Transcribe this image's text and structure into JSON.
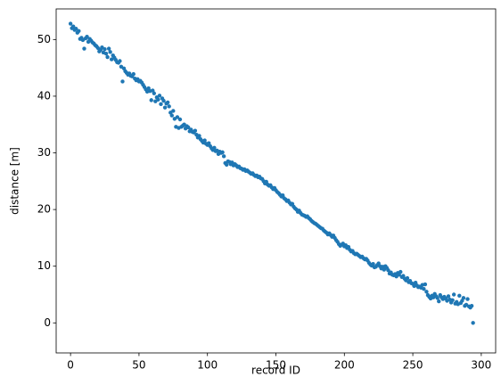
{
  "chart_data": {
    "type": "scatter",
    "xlabel": "record ID",
    "ylabel": "distance [m]",
    "color": "#1f77b4",
    "xlim": [
      -10.5,
      310.5
    ],
    "ylim": [
      -5.3,
      55.4
    ],
    "xticks": [
      0,
      50,
      100,
      150,
      200,
      250,
      300
    ],
    "yticks": [
      0,
      10,
      20,
      30,
      40,
      50
    ],
    "x": [
      0,
      1,
      2,
      3,
      4,
      5,
      6,
      7,
      8,
      9,
      10,
      11,
      12,
      13,
      14,
      15,
      16,
      17,
      18,
      19,
      20,
      21,
      22,
      23,
      24,
      25,
      26,
      27,
      28,
      29,
      30,
      31,
      32,
      33,
      34,
      35,
      36,
      37,
      38,
      39,
      40,
      41,
      42,
      43,
      44,
      45,
      46,
      47,
      48,
      49,
      50,
      51,
      52,
      53,
      54,
      55,
      56,
      57,
      58,
      59,
      60,
      61,
      62,
      63,
      64,
      65,
      66,
      67,
      68,
      69,
      70,
      71,
      72,
      73,
      74,
      75,
      76,
      77,
      78,
      79,
      80,
      81,
      82,
      83,
      84,
      85,
      86,
      87,
      88,
      89,
      90,
      91,
      92,
      93,
      94,
      95,
      96,
      97,
      98,
      99,
      100,
      101,
      102,
      103,
      104,
      105,
      106,
      107,
      108,
      109,
      110,
      111,
      112,
      113,
      114,
      115,
      116,
      117,
      118,
      119,
      120,
      121,
      122,
      123,
      124,
      125,
      126,
      127,
      128,
      129,
      130,
      131,
      132,
      133,
      134,
      135,
      136,
      137,
      138,
      139,
      140,
      141,
      142,
      143,
      144,
      145,
      146,
      147,
      148,
      149,
      150,
      151,
      152,
      153,
      154,
      155,
      156,
      157,
      158,
      159,
      160,
      161,
      162,
      163,
      164,
      165,
      166,
      167,
      168,
      169,
      170,
      171,
      172,
      173,
      174,
      175,
      176,
      177,
      178,
      179,
      180,
      181,
      182,
      183,
      184,
      185,
      186,
      187,
      188,
      189,
      190,
      191,
      192,
      193,
      194,
      195,
      196,
      197,
      198,
      199,
      200,
      201,
      202,
      203,
      204,
      205,
      206,
      207,
      208,
      209,
      210,
      211,
      212,
      213,
      214,
      215,
      216,
      217,
      218,
      219,
      220,
      221,
      222,
      223,
      224,
      225,
      226,
      227,
      228,
      229,
      230,
      231,
      232,
      233,
      234,
      235,
      236,
      237,
      238,
      239,
      240,
      241,
      242,
      243,
      244,
      245,
      246,
      247,
      248,
      249,
      250,
      251,
      252,
      253,
      254,
      255,
      256,
      257,
      258,
      259,
      260,
      261,
      262,
      263,
      264,
      265,
      266,
      267,
      268,
      269,
      270,
      271,
      272,
      273,
      274,
      275,
      276,
      277,
      278,
      279,
      280,
      281,
      282,
      283,
      284,
      285,
      286,
      287,
      288,
      289,
      290,
      291,
      292,
      293,
      294
    ],
    "values": [
      52.8,
      52.0,
      52.3,
      51.7,
      51.9,
      51.2,
      51.5,
      50.1,
      50.3,
      49.9,
      48.4,
      50.2,
      50.5,
      49.6,
      50.1,
      49.8,
      49.5,
      49.3,
      49.0,
      48.8,
      48.5,
      47.9,
      48.2,
      48.6,
      47.7,
      48.3,
      47.5,
      46.9,
      48.4,
      47.8,
      46.5,
      47.2,
      46.8,
      46.4,
      46.0,
      45.9,
      46.2,
      45.2,
      42.6,
      44.9,
      44.4,
      44.1,
      43.8,
      44.0,
      43.6,
      43.5,
      43.9,
      43.1,
      42.8,
      43.0,
      42.6,
      42.7,
      42.4,
      42.0,
      41.6,
      41.2,
      40.8,
      41.4,
      40.9,
      39.3,
      41.0,
      40.5,
      39.1,
      39.8,
      39.4,
      40.1,
      38.6,
      39.6,
      39.2,
      38.0,
      38.7,
      38.9,
      38.2,
      37.1,
      36.6,
      37.4,
      36.0,
      34.6,
      36.3,
      34.4,
      35.9,
      34.6,
      34.8,
      35.0,
      34.3,
      34.7,
      34.5,
      33.8,
      34.1,
      33.7,
      33.6,
      33.9,
      33.2,
      32.7,
      33.0,
      32.4,
      32.1,
      31.8,
      32.2,
      31.6,
      31.4,
      31.7,
      31.2,
      30.8,
      30.5,
      30.9,
      30.3,
      30.4,
      29.8,
      30.2,
      30.0,
      30.1,
      29.4,
      28.2,
      27.9,
      28.5,
      28.4,
      28.0,
      28.3,
      27.8,
      28.0,
      27.8,
      27.5,
      27.6,
      27.3,
      27.2,
      27.0,
      27.1,
      26.8,
      26.9,
      26.7,
      26.5,
      26.3,
      26.4,
      26.1,
      25.9,
      26.0,
      25.7,
      25.8,
      25.5,
      25.4,
      25.0,
      24.6,
      24.9,
      24.4,
      24.2,
      24.3,
      23.9,
      23.6,
      23.8,
      23.4,
      23.1,
      22.9,
      22.6,
      22.3,
      22.5,
      22.0,
      21.8,
      21.5,
      21.6,
      21.2,
      20.9,
      21.0,
      20.5,
      20.2,
      20.0,
      19.6,
      19.8,
      19.4,
      19.1,
      19.0,
      18.9,
      18.7,
      18.8,
      18.5,
      18.3,
      18.0,
      17.8,
      17.6,
      17.5,
      17.3,
      17.1,
      16.9,
      16.7,
      16.6,
      16.3,
      16.1,
      15.9,
      15.6,
      15.8,
      15.5,
      15.2,
      15.4,
      15.0,
      14.6,
      14.3,
      13.9,
      13.6,
      13.8,
      14.0,
      13.5,
      13.7,
      13.2,
      13.4,
      12.9,
      12.6,
      12.7,
      12.3,
      12.1,
      12.2,
      12.0,
      11.8,
      11.6,
      11.7,
      11.4,
      11.2,
      11.3,
      11.0,
      10.6,
      10.3,
      10.1,
      10.4,
      9.8,
      9.9,
      10.2,
      10.5,
      10.0,
      9.6,
      9.9,
      9.4,
      10.0,
      9.7,
      9.3,
      8.7,
      8.9,
      8.5,
      8.4,
      8.6,
      8.2,
      8.8,
      8.5,
      9.0,
      8.1,
      8.3,
      7.8,
      7.5,
      7.9,
      7.2,
      7.4,
      7.0,
      6.9,
      6.5,
      7.1,
      6.6,
      6.3,
      6.4,
      6.2,
      6.7,
      6.0,
      6.8,
      5.5,
      4.9,
      4.6,
      4.3,
      4.8,
      4.5,
      5.1,
      4.7,
      4.4,
      3.8,
      4.9,
      4.5,
      4.2,
      4.6,
      4.3,
      3.9,
      4.7,
      4.1,
      3.6,
      4.0,
      5.0,
      3.4,
      3.7,
      3.3,
      4.8,
      3.5,
      3.9,
      4.4,
      3.0,
      3.2,
      4.2,
      2.9,
      2.7,
      3.0,
      0.0
    ]
  }
}
